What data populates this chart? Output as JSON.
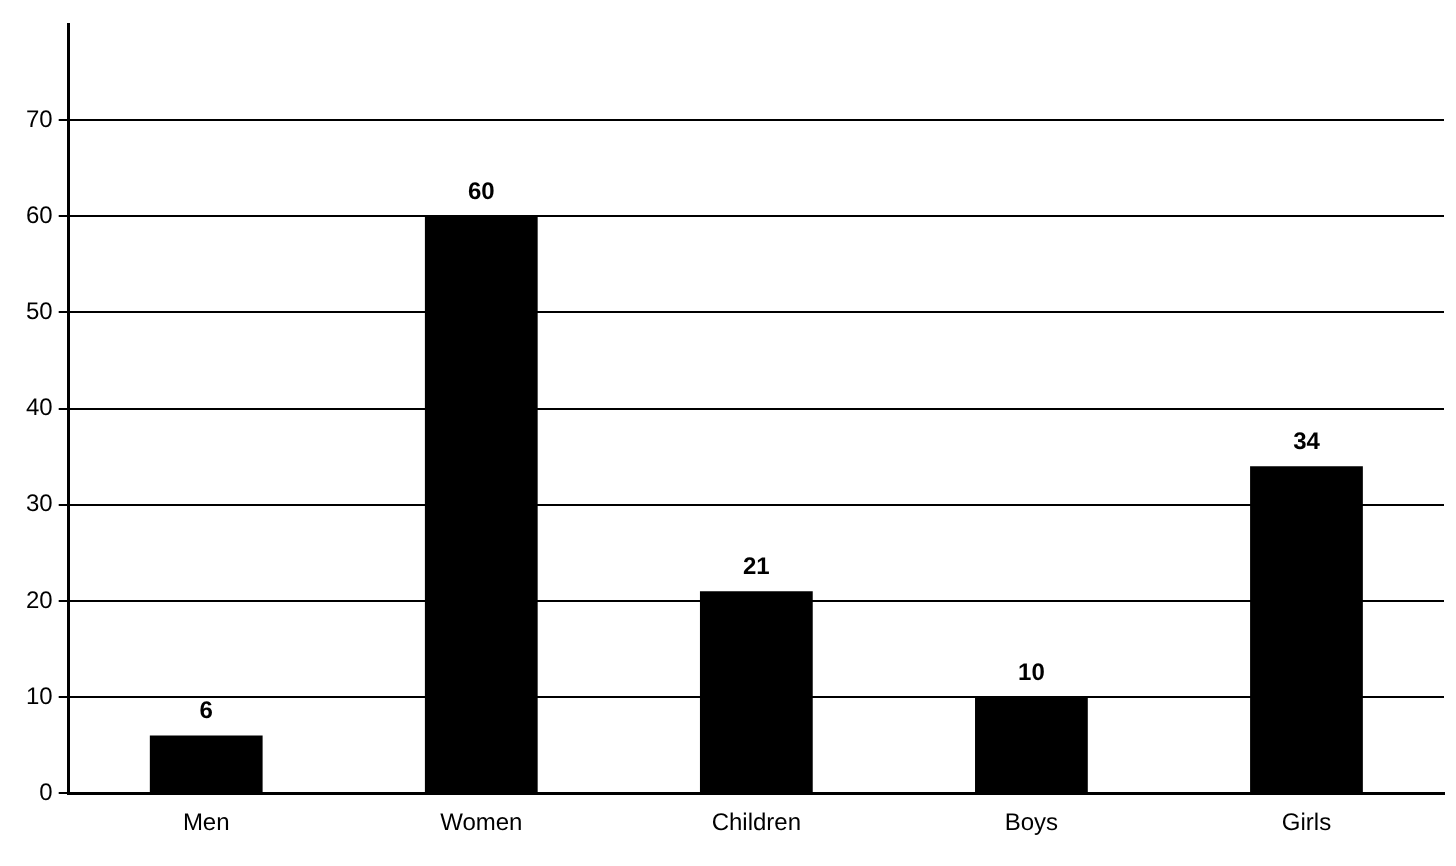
{
  "chart_data": {
    "type": "bar",
    "categories": [
      "Men",
      "Women",
      "Children",
      "Boys",
      "Girls"
    ],
    "values": [
      6,
      60,
      21,
      10,
      34
    ],
    "color": "#000000",
    "ylim": [
      0,
      80
    ],
    "yticks": [
      0,
      10,
      20,
      30,
      40,
      50,
      60,
      70
    ],
    "grid": "y",
    "data_labels": true
  }
}
